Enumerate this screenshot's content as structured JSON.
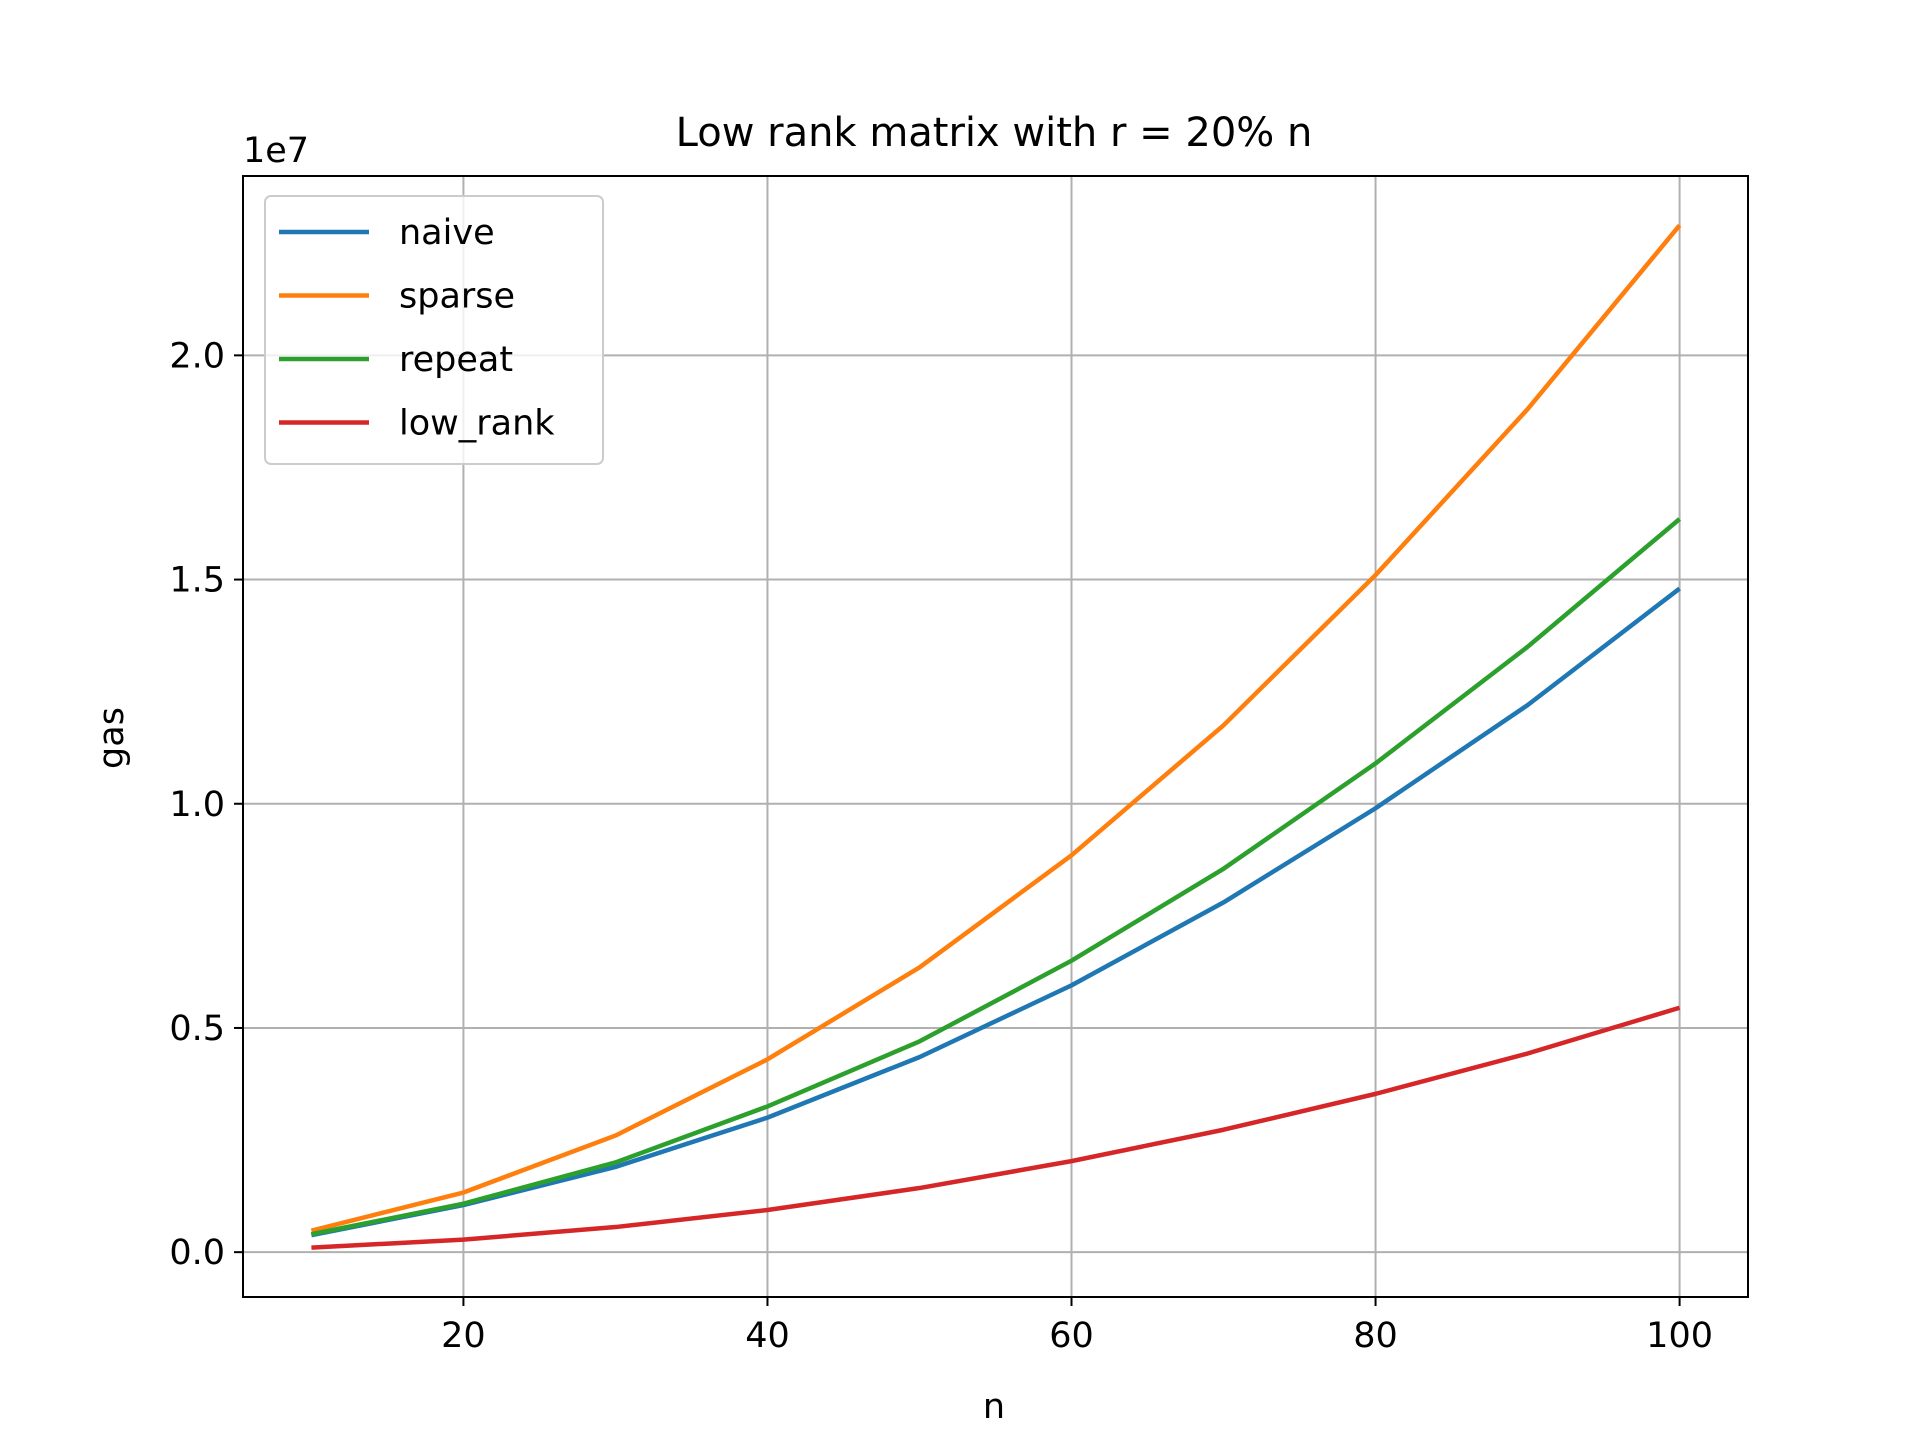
{
  "chart_data": {
    "type": "line",
    "title": "Low rank matrix with r = 20% n",
    "xlabel": "n",
    "ylabel": "gas",
    "y_offset_label": "1e7",
    "x": [
      10,
      20,
      30,
      40,
      50,
      60,
      70,
      80,
      90,
      100
    ],
    "xlim": [
      5.5,
      104.5
    ],
    "ylim": [
      -0.1,
      2.4
    ],
    "x_ticks": [
      20,
      40,
      60,
      80,
      100
    ],
    "x_tick_labels": [
      "20",
      "40",
      "60",
      "80",
      "100"
    ],
    "y_ticks": [
      0.0,
      0.5,
      1.0,
      1.5,
      2.0
    ],
    "y_tick_labels": [
      "0.0",
      "0.5",
      "1.0",
      "1.5",
      "2.0"
    ],
    "grid": true,
    "legend_position": "upper-left",
    "series": [
      {
        "name": "naive",
        "color": "#1f77b4",
        "values": [
          0.038,
          0.105,
          0.19,
          0.3,
          0.435,
          0.595,
          0.78,
          0.99,
          1.22,
          1.48
        ]
      },
      {
        "name": "sparse",
        "color": "#ff7f0e",
        "values": [
          0.048,
          0.133,
          0.26,
          0.43,
          0.635,
          0.885,
          1.175,
          1.51,
          1.88,
          2.29
        ]
      },
      {
        "name": "repeat",
        "color": "#2ca02c",
        "values": [
          0.04,
          0.108,
          0.2,
          0.325,
          0.47,
          0.65,
          0.855,
          1.09,
          1.35,
          1.635
        ]
      },
      {
        "name": "low_rank",
        "color": "#d62728",
        "values": [
          0.01,
          0.028,
          0.056,
          0.094,
          0.143,
          0.203,
          0.273,
          0.353,
          0.443,
          0.545
        ]
      }
    ]
  }
}
